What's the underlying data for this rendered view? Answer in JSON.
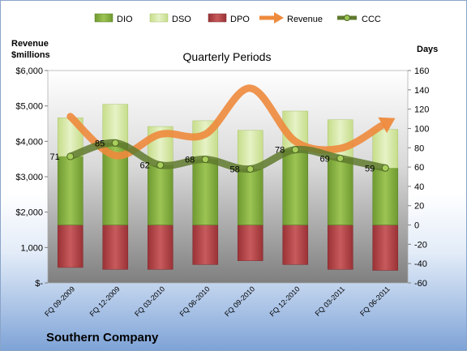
{
  "chart_data": {
    "type": "bar",
    "title": "Quarterly Periods",
    "company": "Southern Company",
    "left_axis": {
      "label_line1": "Revenue",
      "label_line2": "$millions",
      "range": [
        0,
        6000
      ],
      "ticks": [
        0,
        1000,
        2000,
        3000,
        4000,
        5000,
        6000
      ],
      "tick_labels": [
        "$-",
        "1,000",
        "$2,000",
        "$3,000",
        "$4,000",
        "$5,000",
        "$6,000"
      ]
    },
    "right_axis": {
      "label": "Days",
      "range": [
        -60,
        160
      ],
      "ticks": [
        -60,
        -40,
        -20,
        0,
        20,
        40,
        60,
        80,
        100,
        120,
        140,
        160
      ],
      "tick_labels": [
        "-60",
        "-40",
        "-20",
        "0",
        "20",
        "40",
        "60",
        "80",
        "100",
        "120",
        "140",
        "160"
      ]
    },
    "categories": [
      "FQ 09-2009",
      "FQ 12-2009",
      "FQ 03-2010",
      "FQ 06-2010",
      "FQ 09-2010",
      "FQ 12-2010",
      "FQ 03-2011",
      "FQ 06-2011"
    ],
    "series": [
      {
        "name": "DIO",
        "axis": "right",
        "values": [
          71,
          85,
          62,
          68,
          58,
          78,
          69,
          59
        ]
      },
      {
        "name": "DSO",
        "axis": "right",
        "values": [
          40,
          40,
          40,
          40,
          40,
          40,
          40,
          40
        ]
      },
      {
        "name": "DPO",
        "axis": "right",
        "values": [
          -44,
          -46,
          -46,
          -41,
          -37,
          -41,
          -46,
          -47
        ]
      },
      {
        "name": "Revenue",
        "axis": "left",
        "values": [
          4700,
          3600,
          4200,
          4200,
          5500,
          4000,
          3800,
          4500
        ]
      },
      {
        "name": "CCC",
        "axis": "right",
        "values": [
          71,
          85,
          62,
          68,
          58,
          78,
          69,
          59
        ]
      }
    ],
    "ccc_labels": [
      "71",
      "85",
      "62",
      "68",
      "58",
      "78",
      "69",
      "59"
    ],
    "legend": {
      "position": "top",
      "items": [
        "DIO",
        "DSO",
        "DPO",
        "Revenue",
        "CCC"
      ]
    },
    "colors": {
      "DIO": "#8cb54a",
      "DSO": "#d9eab0",
      "DPO": "#b8474a",
      "Revenue": "#ee8a3c",
      "CCC": "#5f7a2e"
    },
    "grid": false
  }
}
